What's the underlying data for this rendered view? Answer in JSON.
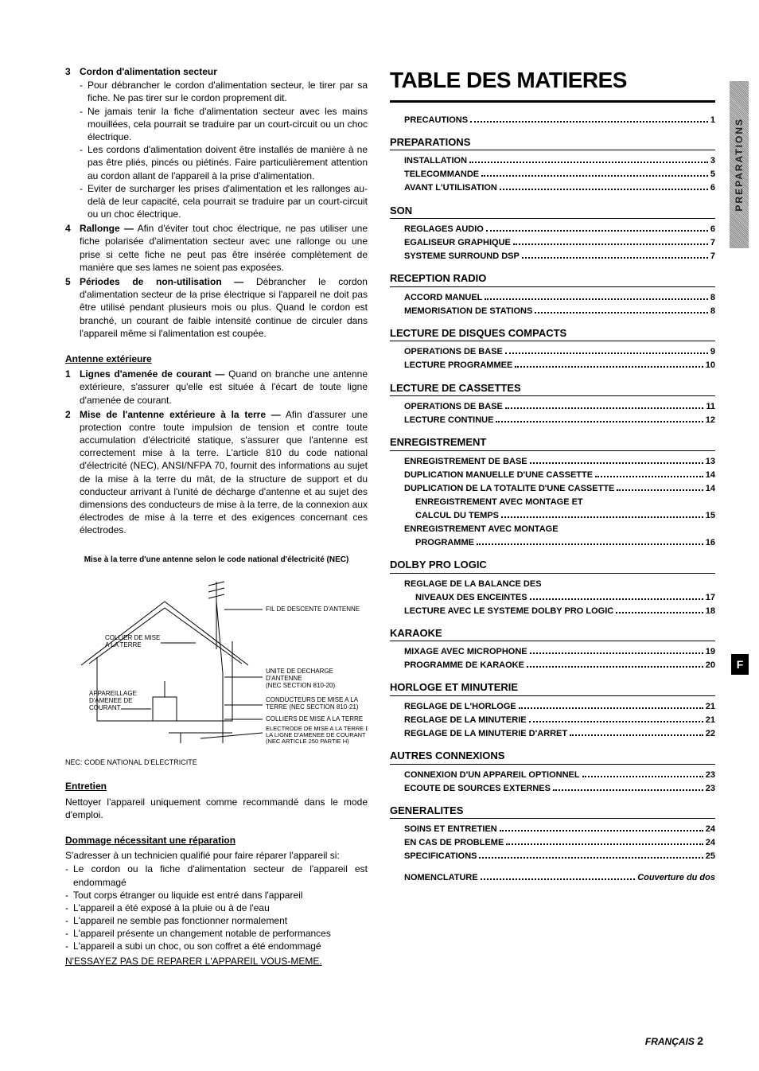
{
  "left": {
    "item3": {
      "num": "3",
      "title": "Cordon d'alimentation secteur",
      "bullets": [
        "Pour débrancher le cordon d'alimentation secteur, le tirer par sa fiche. Ne pas tirer sur le cordon proprement dit.",
        "Ne jamais tenir la fiche d'alimentation secteur avec les mains mouillées, cela pourrait se traduire par un court-circuit ou un choc électrique.",
        "Les cordons d'alimentation doivent être installés de manière à ne pas être pliés, pincés ou piétinés. Faire particulièrement attention au cordon allant de l'appareil à la prise d'alimentation.",
        "Eviter de surcharger les prises d'alimentation et les rallonges au-delà de leur capacité, cela pourrait se traduire par un court-circuit ou un choc électrique."
      ]
    },
    "item4": {
      "num": "4",
      "title": "Rallonge —",
      "text": "Afin d'éviter tout choc électrique, ne pas utiliser une fiche polarisée d'alimentation secteur avec une rallonge ou une prise si cette fiche ne peut pas être insérée complètement de manière que ses lames ne soient pas exposées."
    },
    "item5": {
      "num": "5",
      "title": "Périodes de non-utilisation —",
      "text": "Débrancher le cordon d'alimentation secteur de la prise électrique si l'appareil ne doit pas être utilisé pendant plusieurs mois ou plus. Quand le cordon est branché, un courant de faible intensité continue de circuler dans l'appareil même si l'alimentation est coupée."
    },
    "antenne_h": "Antenne extérieure",
    "ant1": {
      "num": "1",
      "title": "Lignes d'amenée de courant —",
      "text": "Quand on branche une antenne extérieure, s'assurer qu'elle est située à l'écart de toute ligne d'amenée de courant."
    },
    "ant2": {
      "num": "2",
      "title": "Mise de l'antenne extérieure à la terre —",
      "text": "Afin d'assurer une protection contre toute impulsion de tension et contre toute accumulation d'électricité statique, s'assurer que l'antenne est correctement mise à la terre. L'article 810 du code national d'électricité (NEC), ANSI/NFPA 70, fournit des informations au sujet de la mise à la terre du mât, de la structure de support et du conducteur arrivant à l'unité de décharge d'antenne et au sujet des dimensions des conducteurs de mise à la terre, de la connexion aux électrodes de mise à la terre et des exigences concernant ces électrodes."
    },
    "diag_caption": "Mise à la terre d'une antenne selon le code national d'électricité (NEC)",
    "diag_labels": {
      "fil": "FIL DE DESCENTE D'ANTENNE",
      "collier": "COLLIER DE MISE\nA LA TERRE",
      "appareil": "APPAREILLAGE\nD'AMENEE DE\nCOURANT",
      "unite": "UNITE DE DECHARGE\nD'ANTENNE\n(NEC SECTION 810-20)",
      "cond": "CONDUCTEURS DE MISE A LA\nTERRE (NEC SECTION 810-21)",
      "colliers2": "COLLIERS DE MISE A LA TERRE",
      "electrode": "ELECTRODE DE MISE A LA TERRE DE\nLA LIGNE D'AMENEE DE COURANT\n(NEC ARTICLE 250 PARTIE H)"
    },
    "nec_foot": "NEC: CODE NATIONAL D'ELECTRICITE",
    "entretien_h": "Entretien",
    "entretien_t": "Nettoyer l'appareil uniquement comme recommandé dans le mode d'emploi.",
    "dommage_h": "Dommage nécessitant une réparation",
    "dommage_intro": "S'adresser à un technicien qualifié pour faire réparer l'appareil si:",
    "dommage_items": [
      "Le cordon ou la fiche d'alimentation secteur de l'appareil est endommagé",
      "Tout corps étranger ou liquide est entré dans l'appareil",
      "L'appareil a été exposé à la pluie ou à de l'eau",
      "L'appareil ne semble pas fonctionner normalement",
      "L'appareil présente un changement notable de performances",
      "L'appareil a subi un choc, ou son coffret a été endommagé"
    ],
    "no_repair": "N'ESSAYEZ PAS DE REPARER L'APPAREIL VOUS-MEME."
  },
  "toc": {
    "title": "TABLE DES MATIERES",
    "standalone_top": {
      "label": "PRECAUTIONS",
      "page": "1"
    },
    "sections": [
      {
        "h": "PREPARATIONS",
        "items": [
          {
            "label": "INSTALLATION",
            "page": "3"
          },
          {
            "label": "TELECOMMANDE",
            "page": "5"
          },
          {
            "label": "AVANT L'UTILISATION",
            "page": "6"
          }
        ]
      },
      {
        "h": "SON",
        "items": [
          {
            "label": "REGLAGES AUDIO",
            "page": "6"
          },
          {
            "label": "EGALISEUR GRAPHIQUE",
            "page": "7"
          },
          {
            "label": "SYSTEME SURROUND DSP",
            "page": "7"
          }
        ]
      },
      {
        "h": "RECEPTION RADIO",
        "items": [
          {
            "label": "ACCORD MANUEL",
            "page": "8"
          },
          {
            "label": "MEMORISATION DE STATIONS",
            "page": "8"
          }
        ]
      },
      {
        "h": "LECTURE DE DISQUES COMPACTS",
        "items": [
          {
            "label": "OPERATIONS DE BASE",
            "page": "9"
          },
          {
            "label": "LECTURE PROGRAMMEE",
            "page": "10"
          }
        ]
      },
      {
        "h": "LECTURE DE CASSETTES",
        "items": [
          {
            "label": "OPERATIONS DE BASE",
            "page": "11"
          },
          {
            "label": "LECTURE CONTINUE",
            "page": "12"
          }
        ]
      },
      {
        "h": "ENREGISTREMENT",
        "items": [
          {
            "label": "ENREGISTREMENT DE BASE",
            "page": "13"
          },
          {
            "label": "DUPLICATION MANUELLE D'UNE CASSETTE",
            "page": "14"
          },
          {
            "label": "DUPLICATION DE LA TOTALITE D'UNE CASSETTE",
            "page": "14"
          },
          {
            "label": "ENREGISTREMENT AVEC MONTAGE ET",
            "sub": true,
            "nopage": true
          },
          {
            "label": "CALCUL DU TEMPS",
            "sub": true,
            "page": "15"
          },
          {
            "label": "ENREGISTREMENT AVEC MONTAGE",
            "nopage": true
          },
          {
            "label": "PROGRAMME",
            "sub": true,
            "page": "16"
          }
        ]
      },
      {
        "h": "DOLBY PRO LOGIC",
        "items": [
          {
            "label": "REGLAGE DE LA BALANCE DES",
            "nopage": true
          },
          {
            "label": "NIVEAUX DES ENCEINTES",
            "sub": true,
            "page": "17"
          },
          {
            "label": "LECTURE AVEC LE SYSTEME DOLBY PRO LOGIC",
            "page": "18"
          }
        ]
      },
      {
        "h": "KARAOKE",
        "items": [
          {
            "label": "MIXAGE AVEC MICROPHONE",
            "page": "19"
          },
          {
            "label": "PROGRAMME DE KARAOKE",
            "page": "20"
          }
        ]
      },
      {
        "h": "HORLOGE ET MINUTERIE",
        "items": [
          {
            "label": "REGLAGE DE L'HORLOGE",
            "page": "21"
          },
          {
            "label": "REGLAGE DE LA MINUTERIE",
            "page": "21"
          },
          {
            "label": "REGLAGE DE LA MINUTERIE D'ARRET",
            "page": "22"
          }
        ]
      },
      {
        "h": "AUTRES CONNEXIONS",
        "items": [
          {
            "label": "CONNEXION D'UN APPAREIL OPTIONNEL",
            "page": "23"
          },
          {
            "label": "ECOUTE DE SOURCES EXTERNES",
            "page": "23"
          }
        ]
      },
      {
        "h": "GENERALITES",
        "items": [
          {
            "label": "SOINS ET ENTRETIEN",
            "page": "24"
          },
          {
            "label": "EN CAS DE PROBLEME",
            "page": "24"
          },
          {
            "label": "SPECIFICATIONS",
            "page": "25"
          }
        ]
      }
    ],
    "nomenclature": {
      "label": "NOMENCLATURE",
      "page": "Couverture du dos"
    },
    "side_tab": "PREPARATIONS",
    "f_tab": "F"
  },
  "footer": {
    "lang": "FRANÇAIS",
    "page": "2"
  }
}
